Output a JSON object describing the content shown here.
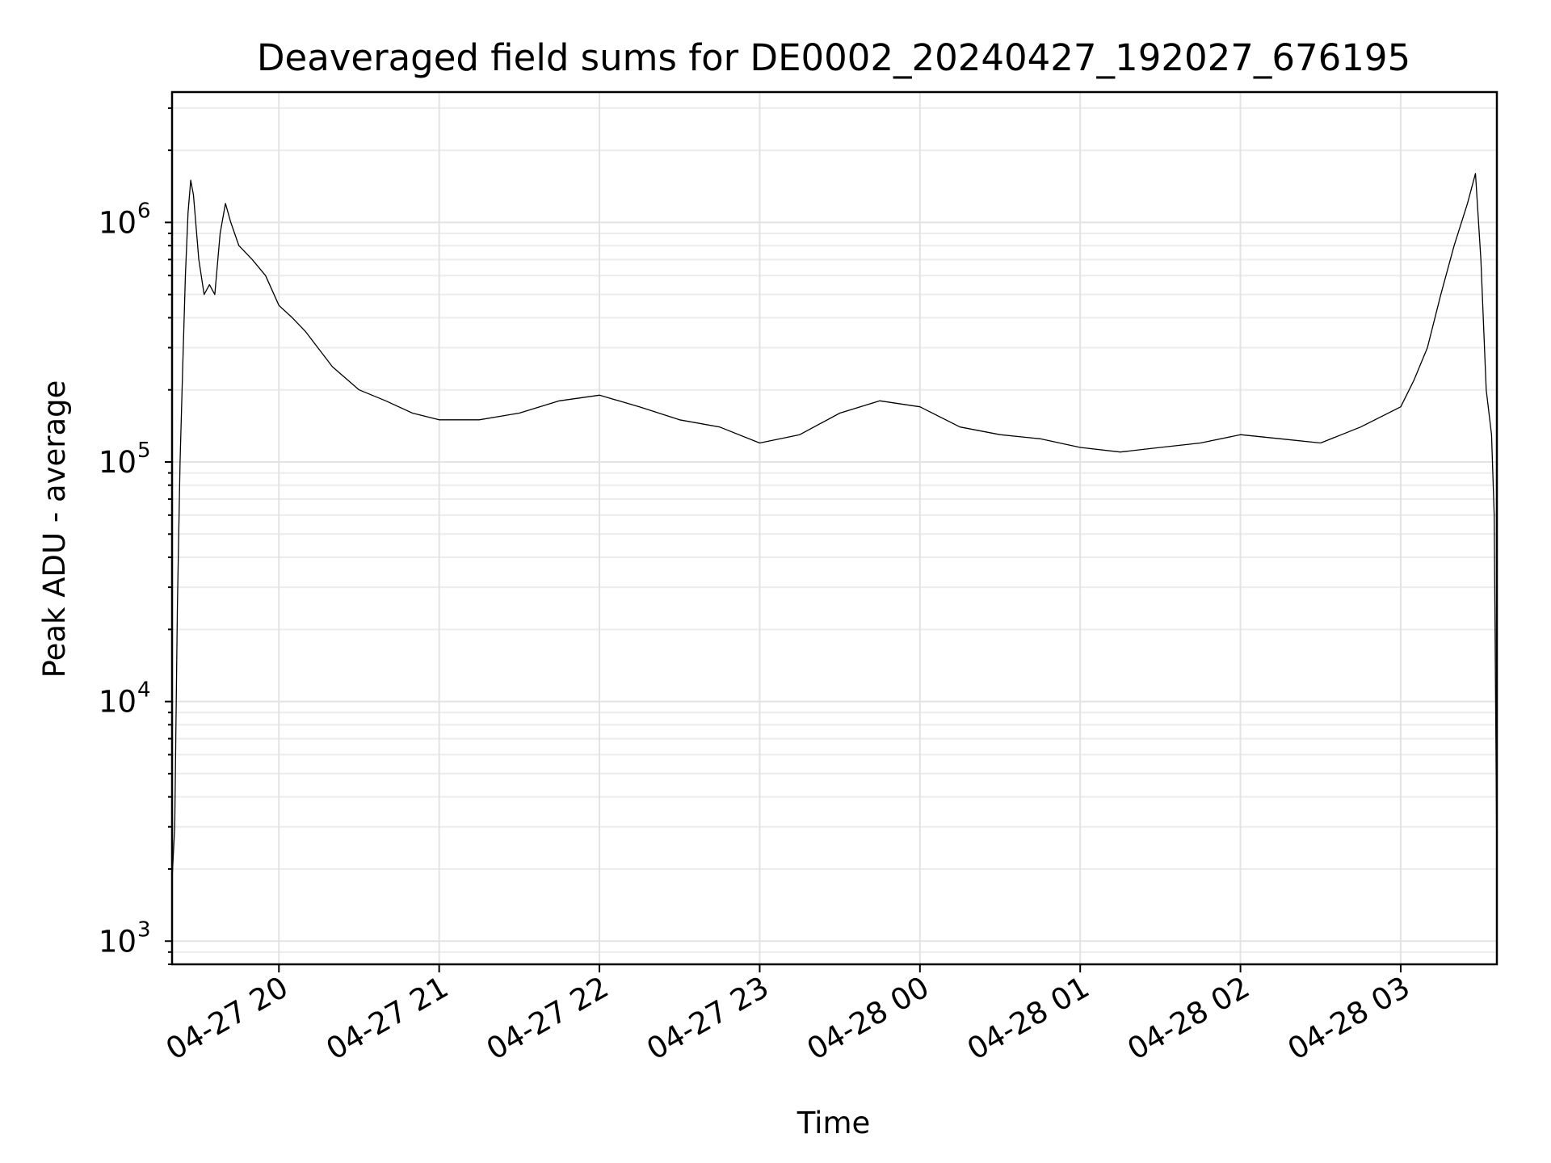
{
  "chart_data": {
    "type": "line",
    "title": "Deaveraged field sums for DE0002_20240427_192027_676195",
    "xlabel": "Time",
    "ylabel": "Peak ADU - average",
    "y_scale": "log",
    "ylim": [
      800,
      3500000
    ],
    "xlim": [
      "2024-04-27 19:20",
      "2024-04-28 03:36"
    ],
    "grid": true,
    "line_color": "#000000",
    "x_ticks": [
      {
        "t": "2024-04-27 20:00",
        "label": "04-27 20"
      },
      {
        "t": "2024-04-27 21:00",
        "label": "04-27 21"
      },
      {
        "t": "2024-04-27 22:00",
        "label": "04-27 22"
      },
      {
        "t": "2024-04-27 23:00",
        "label": "04-27 23"
      },
      {
        "t": "2024-04-28 00:00",
        "label": "04-28 00"
      },
      {
        "t": "2024-04-28 01:00",
        "label": "04-28 01"
      },
      {
        "t": "2024-04-28 02:00",
        "label": "04-28 02"
      },
      {
        "t": "2024-04-28 03:00",
        "label": "04-28 03"
      }
    ],
    "y_ticks": [
      {
        "value": 1000,
        "base": "10",
        "exp": "3"
      },
      {
        "value": 10000,
        "base": "10",
        "exp": "4"
      },
      {
        "value": 100000,
        "base": "10",
        "exp": "5"
      },
      {
        "value": 1000000,
        "base": "10",
        "exp": "6"
      }
    ],
    "series": [
      {
        "x": [
          "2024-04-27 19:20",
          "2024-04-27 19:21",
          "2024-04-27 19:22",
          "2024-04-27 19:23",
          "2024-04-27 19:24",
          "2024-04-27 19:25",
          "2024-04-27 19:26",
          "2024-04-27 19:27",
          "2024-04-27 19:28",
          "2024-04-27 19:30",
          "2024-04-27 19:32",
          "2024-04-27 19:34",
          "2024-04-27 19:36",
          "2024-04-27 19:38",
          "2024-04-27 19:40",
          "2024-04-27 19:42",
          "2024-04-27 19:45",
          "2024-04-27 19:50",
          "2024-04-27 19:55",
          "2024-04-27 20:00",
          "2024-04-27 20:05",
          "2024-04-27 20:10",
          "2024-04-27 20:20",
          "2024-04-27 20:30",
          "2024-04-27 20:40",
          "2024-04-27 20:50",
          "2024-04-27 21:00",
          "2024-04-27 21:15",
          "2024-04-27 21:30",
          "2024-04-27 21:45",
          "2024-04-27 22:00",
          "2024-04-27 22:15",
          "2024-04-27 22:30",
          "2024-04-27 22:45",
          "2024-04-27 23:00",
          "2024-04-27 23:15",
          "2024-04-27 23:30",
          "2024-04-27 23:45",
          "2024-04-28 00:00",
          "2024-04-28 00:15",
          "2024-04-28 00:30",
          "2024-04-28 00:45",
          "2024-04-28 01:00",
          "2024-04-28 01:15",
          "2024-04-28 01:30",
          "2024-04-28 01:45",
          "2024-04-28 02:00",
          "2024-04-28 02:15",
          "2024-04-28 02:30",
          "2024-04-28 02:45",
          "2024-04-28 03:00",
          "2024-04-28 03:05",
          "2024-04-28 03:10",
          "2024-04-28 03:15",
          "2024-04-28 03:20",
          "2024-04-28 03:25",
          "2024-04-28 03:28",
          "2024-04-28 03:30",
          "2024-04-28 03:32",
          "2024-04-28 03:34",
          "2024-04-28 03:35",
          "2024-04-28 03:36"
        ],
        "y": [
          1800,
          3000,
          25000,
          100000,
          250000,
          600000,
          1100000,
          1500000,
          1300000,
          700000,
          500000,
          550000,
          500000,
          900000,
          1200000,
          1000000,
          800000,
          700000,
          600000,
          450000,
          400000,
          350000,
          250000,
          200000,
          180000,
          160000,
          150000,
          150000,
          160000,
          180000,
          190000,
          170000,
          150000,
          140000,
          120000,
          130000,
          160000,
          180000,
          170000,
          140000,
          130000,
          125000,
          115000,
          110000,
          115000,
          120000,
          130000,
          125000,
          120000,
          140000,
          170000,
          220000,
          300000,
          500000,
          800000,
          1200000,
          1600000,
          700000,
          200000,
          130000,
          60000,
          2000
        ]
      }
    ]
  }
}
